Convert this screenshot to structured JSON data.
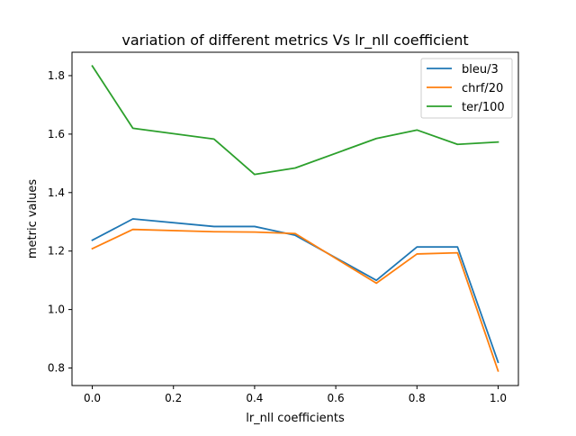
{
  "chart_data": {
    "type": "line",
    "title": "variation of different metrics Vs lr_nll coefficient",
    "xlabel": "lr_nll coefficients",
    "ylabel": "metric values",
    "xlim": [
      -0.05,
      1.05
    ],
    "ylim": [
      0.74,
      1.88
    ],
    "x_ticks": [
      0.0,
      0.2,
      0.4,
      0.6,
      0.8,
      1.0
    ],
    "x_tick_labels": [
      "0.0",
      "0.2",
      "0.4",
      "0.6",
      "0.8",
      "1.0"
    ],
    "y_ticks": [
      0.8,
      1.0,
      1.2,
      1.4,
      1.6,
      1.8
    ],
    "y_tick_labels": [
      "0.8",
      "1.0",
      "1.2",
      "1.4",
      "1.6",
      "1.8"
    ],
    "grid": false,
    "legend_position": "upper right",
    "x": [
      0.0,
      0.1,
      0.3,
      0.4,
      0.5,
      0.7,
      0.8,
      0.9,
      1.0
    ],
    "series": [
      {
        "name": "bleu/3",
        "color": "#1f77b4",
        "values": [
          1.237,
          1.31,
          1.284,
          1.284,
          1.254,
          1.1,
          1.214,
          1.214,
          0.82
        ]
      },
      {
        "name": "chrf/20",
        "color": "#ff7f0e",
        "values": [
          1.208,
          1.274,
          1.266,
          1.265,
          1.26,
          1.09,
          1.19,
          1.194,
          0.79
        ]
      },
      {
        "name": "ter/100",
        "color": "#2ca02c",
        "values": [
          1.833,
          1.62,
          1.583,
          1.462,
          1.484,
          1.585,
          1.614,
          1.565,
          1.573
        ]
      }
    ]
  }
}
